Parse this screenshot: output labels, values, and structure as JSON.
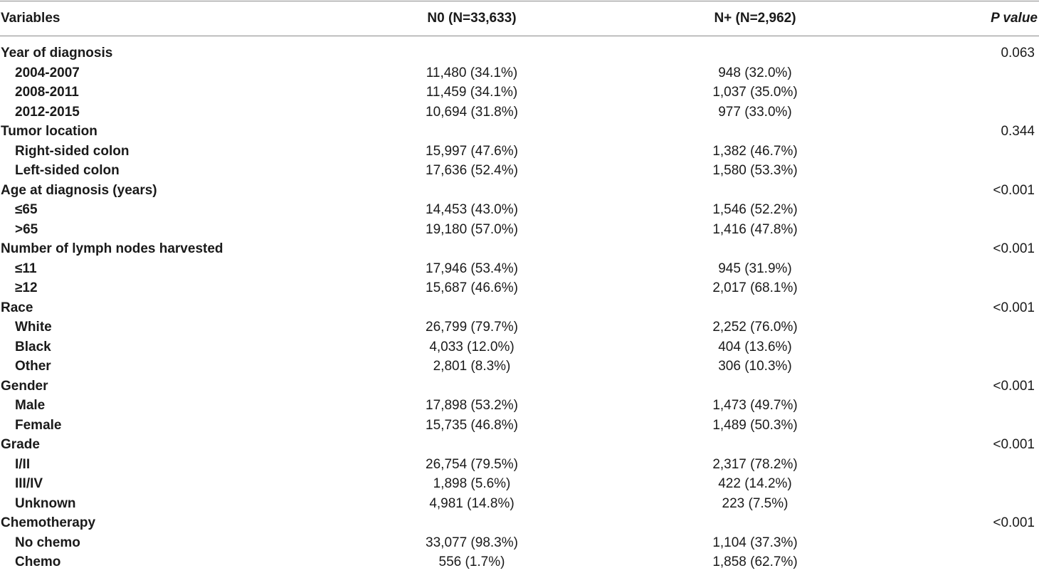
{
  "header": {
    "variables": "Variables",
    "n0": "N0 (N=33,633)",
    "nplus": "N+ (N=2,962)",
    "pvalue": "P value"
  },
  "rows": [
    {
      "type": "group",
      "label": "Year of diagnosis",
      "n0": "",
      "nplus": "",
      "p": "0.063"
    },
    {
      "type": "sub",
      "label": "2004-2007",
      "n0": "11,480 (34.1%)",
      "nplus": "948 (32.0%)",
      "p": ""
    },
    {
      "type": "sub",
      "label": "2008-2011",
      "n0": "11,459 (34.1%)",
      "nplus": "1,037 (35.0%)",
      "p": ""
    },
    {
      "type": "sub",
      "label": "2012-2015",
      "n0": "10,694 (31.8%)",
      "nplus": "977 (33.0%)",
      "p": ""
    },
    {
      "type": "group",
      "label": "Tumor location",
      "n0": "",
      "nplus": "",
      "p": "0.344"
    },
    {
      "type": "sub",
      "label": "Right-sided colon",
      "n0": "15,997 (47.6%)",
      "nplus": "1,382 (46.7%)",
      "p": ""
    },
    {
      "type": "sub",
      "label": "Left-sided colon",
      "n0": "17,636 (52.4%)",
      "nplus": "1,580 (53.3%)",
      "p": ""
    },
    {
      "type": "group",
      "label": "Age at diagnosis (years)",
      "n0": "",
      "nplus": "",
      "p": "<0.001"
    },
    {
      "type": "sub",
      "label": "≤65",
      "n0": "14,453 (43.0%)",
      "nplus": "1,546 (52.2%)",
      "p": ""
    },
    {
      "type": "sub",
      "label": ">65",
      "n0": "19,180 (57.0%)",
      "nplus": "1,416 (47.8%)",
      "p": ""
    },
    {
      "type": "group",
      "label": "Number of lymph nodes harvested",
      "n0": "",
      "nplus": "",
      "p": "<0.001"
    },
    {
      "type": "sub",
      "label": "≤11",
      "n0": "17,946 (53.4%)",
      "nplus": "945 (31.9%)",
      "p": ""
    },
    {
      "type": "sub",
      "label": "≥12",
      "n0": "15,687 (46.6%)",
      "nplus": "2,017 (68.1%)",
      "p": ""
    },
    {
      "type": "group",
      "label": "Race",
      "n0": "",
      "nplus": "",
      "p": "<0.001"
    },
    {
      "type": "sub",
      "label": "White",
      "n0": "26,799 (79.7%)",
      "nplus": "2,252 (76.0%)",
      "p": ""
    },
    {
      "type": "sub",
      "label": "Black",
      "n0": "4,033 (12.0%)",
      "nplus": "404 (13.6%)",
      "p": ""
    },
    {
      "type": "sub",
      "label": "Other",
      "n0": "2,801 (8.3%)",
      "nplus": "306 (10.3%)",
      "p": ""
    },
    {
      "type": "group",
      "label": "Gender",
      "n0": "",
      "nplus": "",
      "p": "<0.001"
    },
    {
      "type": "sub",
      "label": "Male",
      "n0": "17,898 (53.2%)",
      "nplus": "1,473 (49.7%)",
      "p": ""
    },
    {
      "type": "sub",
      "label": "Female",
      "n0": "15,735 (46.8%)",
      "nplus": "1,489 (50.3%)",
      "p": ""
    },
    {
      "type": "group",
      "label": "Grade",
      "n0": "",
      "nplus": "",
      "p": "<0.001"
    },
    {
      "type": "sub",
      "label": "I/II",
      "n0": "26,754 (79.5%)",
      "nplus": "2,317 (78.2%)",
      "p": ""
    },
    {
      "type": "sub",
      "label": "III/IV",
      "n0": "1,898 (5.6%)",
      "nplus": "422 (14.2%)",
      "p": ""
    },
    {
      "type": "sub",
      "label": "Unknown",
      "n0": "4,981 (14.8%)",
      "nplus": "223 (7.5%)",
      "p": ""
    },
    {
      "type": "group",
      "label": "Chemotherapy",
      "n0": "",
      "nplus": "",
      "p": "<0.001"
    },
    {
      "type": "sub",
      "label": "No chemo",
      "n0": "33,077 (98.3%)",
      "nplus": "1,104 (37.3%)",
      "p": ""
    },
    {
      "type": "sub",
      "label": "Chemo",
      "n0": "556 (1.7%)",
      "nplus": "1,858 (62.7%)",
      "p": ""
    }
  ]
}
